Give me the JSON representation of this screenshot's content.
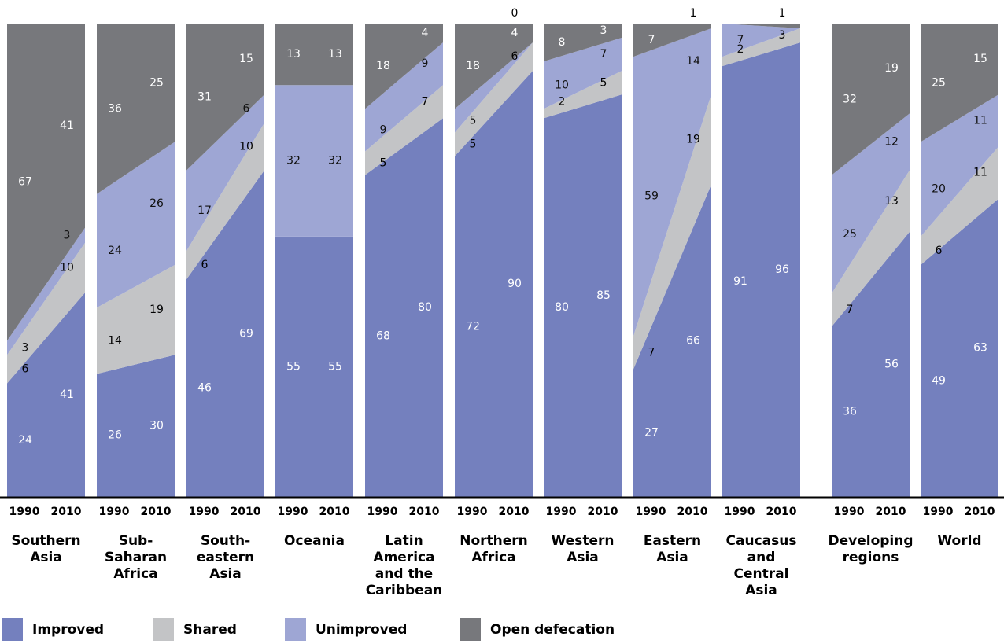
{
  "chart_data": {
    "type": "area",
    "years": [
      "1990",
      "2010"
    ],
    "series_names": [
      "Improved",
      "Shared",
      "Unimproved",
      "Open defecation"
    ],
    "colors": {
      "Improved": "#7480be",
      "Shared": "#c3c4c6",
      "Unimproved": "#9ea6d4",
      "Open defecation": "#77787c",
      "axis": "#000000"
    },
    "regions": [
      {
        "name": "Southern Asia",
        "values": {
          "1990": [
            24,
            6,
            3,
            67
          ],
          "2010": [
            41,
            10,
            3,
            41
          ]
        },
        "labels": {
          "1990": [
            "24",
            "6",
            "3",
            "67"
          ],
          "2010": [
            "41",
            "10",
            "3",
            "41"
          ]
        }
      },
      {
        "name": "Sub-Saharan Africa",
        "values": {
          "1990": [
            26,
            14,
            24,
            36
          ],
          "2010": [
            30,
            19,
            26,
            25
          ]
        },
        "labels": {
          "1990": [
            "26",
            "14",
            "24",
            "36"
          ],
          "2010": [
            "30",
            "19",
            "26",
            "25"
          ]
        }
      },
      {
        "name": "South-eastern Asia",
        "values": {
          "1990": [
            46,
            6,
            17,
            31
          ],
          "2010": [
            69,
            10,
            6,
            15
          ]
        },
        "labels": {
          "1990": [
            "46",
            "6",
            "17",
            "31"
          ],
          "2010": [
            "69",
            "10",
            "6",
            "15"
          ]
        }
      },
      {
        "name": "Oceania",
        "values": {
          "1990": [
            55,
            0,
            32,
            13
          ],
          "2010": [
            55,
            0,
            32,
            13
          ]
        },
        "labels": {
          "1990": [
            "55",
            "",
            "32",
            "13"
          ],
          "2010": [
            "55",
            "",
            "32",
            "13"
          ]
        }
      },
      {
        "name": "Latin America and the Caribbean",
        "values": {
          "1990": [
            68,
            5,
            9,
            18
          ],
          "2010": [
            80,
            7,
            9,
            4
          ]
        },
        "labels": {
          "1990": [
            "68",
            "5",
            "9",
            "18"
          ],
          "2010": [
            "80",
            "7",
            "9",
            "4"
          ]
        }
      },
      {
        "name": "Northern Africa",
        "values": {
          "1990": [
            72,
            5,
            5,
            18
          ],
          "2010": [
            90,
            6,
            0,
            4
          ]
        },
        "labels": {
          "1990": [
            "72",
            "5",
            "5",
            "18"
          ],
          "2010": [
            "90",
            "6",
            "0",
            "4"
          ]
        }
      },
      {
        "name": "Western Asia",
        "values": {
          "1990": [
            80,
            2,
            10,
            8
          ],
          "2010": [
            85,
            5,
            7,
            3
          ]
        },
        "labels": {
          "1990": [
            "80",
            "2",
            "10",
            "8"
          ],
          "2010": [
            "85",
            "5",
            "7",
            "3"
          ]
        }
      },
      {
        "name": "Eastern Asia",
        "values": {
          "1990": [
            27,
            7,
            59,
            7
          ],
          "2010": [
            66,
            19,
            14,
            1
          ]
        },
        "labels": {
          "1990": [
            "27",
            "7",
            "59",
            "7"
          ],
          "2010": [
            "66",
            "19",
            "14",
            "1"
          ]
        }
      },
      {
        "name": "Caucasus and Central Asia",
        "values": {
          "1990": [
            91,
            2,
            7,
            0
          ],
          "2010": [
            96,
            3,
            0,
            1
          ]
        },
        "labels": {
          "1990": [
            "91",
            "2",
            "7",
            ""
          ],
          "2010": [
            "96",
            "3",
            "",
            "1"
          ]
        }
      },
      {
        "name": "Developing regions",
        "values": {
          "1990": [
            36,
            7,
            25,
            32
          ],
          "2010": [
            56,
            13,
            12,
            19
          ]
        },
        "labels": {
          "1990": [
            "36",
            "7",
            "25",
            "32"
          ],
          "2010": [
            "56",
            "13",
            "12",
            "19"
          ]
        }
      },
      {
        "name": "World",
        "values": {
          "1990": [
            49,
            6,
            20,
            25
          ],
          "2010": [
            63,
            11,
            11,
            15
          ]
        },
        "labels": {
          "1990": [
            "49",
            "6",
            "20",
            "25"
          ],
          "2010": [
            "63",
            "11",
            "11",
            "15"
          ]
        }
      }
    ],
    "region_label_lines": [
      [
        "Southern",
        "Asia"
      ],
      [
        "Sub-",
        "Saharan",
        "Africa"
      ],
      [
        "South-",
        "eastern",
        "Asia"
      ],
      [
        "Oceania"
      ],
      [
        "Latin",
        "America",
        "and the",
        "Caribbean"
      ],
      [
        "Northern",
        "Africa"
      ],
      [
        "Western",
        "Asia"
      ],
      [
        "Eastern",
        "Asia"
      ],
      [
        "Caucasus",
        "and",
        "Central",
        "Asia"
      ],
      [
        "Developing",
        "regions"
      ],
      [
        "World"
      ]
    ],
    "ylim": [
      0,
      100
    ],
    "legend_position": "bottom-left"
  },
  "legend": {
    "items": [
      {
        "label": "Improved",
        "color": "#7480be"
      },
      {
        "label": "Shared",
        "color": "#c3c4c6"
      },
      {
        "label": "Unimproved",
        "color": "#9ea6d4"
      },
      {
        "label": "Open defecation",
        "color": "#77787c"
      }
    ]
  }
}
